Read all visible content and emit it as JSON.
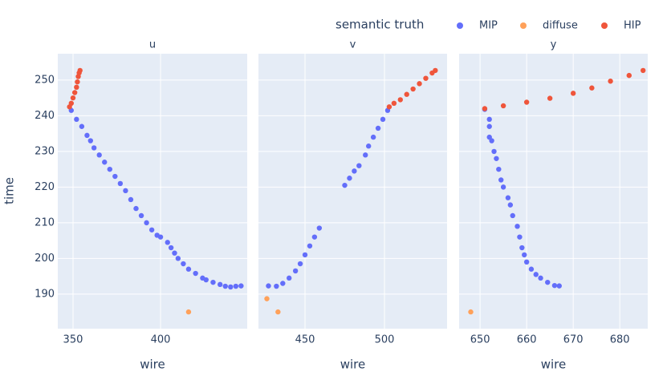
{
  "chart_data": {
    "type": "scatter",
    "legend_title": "semantic truth",
    "ylabel": "time",
    "ylim": [
      180.3,
      257.4
    ],
    "yticks": [
      190,
      200,
      210,
      220,
      230,
      240,
      250
    ],
    "grid": true,
    "series": [
      {
        "name": "MIP",
        "color": "#636efa"
      },
      {
        "name": "diffuse",
        "color": "#FFA15A"
      },
      {
        "name": "HIP",
        "color": "#EF553B"
      }
    ],
    "panels": [
      {
        "title": "u",
        "xlabel": "wire",
        "xlim": [
          341.3,
          449.5
        ],
        "xticks": [
          350,
          400
        ],
        "series": [
          {
            "x": [
              349,
              352,
              355,
              358,
              360,
              362,
              365,
              368,
              371,
              374,
              377,
              380,
              383,
              386,
              389,
              392,
              395,
              398,
              400,
              404,
              406,
              408,
              410,
              413,
              416,
              420,
              424,
              426,
              430,
              434,
              437,
              440,
              443,
              446
            ],
            "y": [
              241.5,
              239,
              237,
              234.5,
              233,
              231,
              229,
              227,
              225,
              223,
              221,
              219,
              216.5,
              214,
              212,
              210,
              208,
              206.5,
              206,
              204.5,
              203,
              201.5,
              200,
              198.5,
              197,
              195.8,
              194.5,
              194,
              193.3,
              192.7,
              192.2,
              192,
              192.2,
              192.3
            ]
          },
          {
            "x": [
              416
            ],
            "y": [
              185
            ]
          },
          {
            "x": [
              348,
              349,
              350,
              351,
              352,
              352.5,
              353,
              353.5,
              354
            ],
            "y": [
              242.5,
              243.5,
              245,
              246.5,
              248,
              249.5,
              251,
              252,
              252.7
            ]
          }
        ]
      },
      {
        "title": "v",
        "xlabel": "wire",
        "xlim": [
          420.7,
          539.4
        ],
        "xticks": [
          450,
          500
        ],
        "series": [
          {
            "x": [
              427,
              432,
              436,
              440,
              444,
              447,
              450,
              453,
              456,
              459,
              475,
              478,
              481,
              484,
              488,
              490,
              493,
              496,
              499,
              502
            ],
            "y": [
              192.3,
              192.2,
              193,
              194.5,
              196.5,
              198.5,
              201,
              203.5,
              206,
              208.5,
              220.5,
              222.5,
              224.5,
              226,
              229,
              231.5,
              234,
              236.5,
              239,
              241.5
            ]
          },
          {
            "x": [
              426,
              433
            ],
            "y": [
              188.7,
              185
            ]
          },
          {
            "x": [
              503,
              506,
              510,
              514,
              518,
              522,
              526,
              530,
              532
            ],
            "y": [
              242.5,
              243.5,
              244.5,
              246,
              247.5,
              249,
              250.5,
              252,
              252.7
            ]
          }
        ]
      },
      {
        "title": "y",
        "xlabel": "wire",
        "xlim": [
          645.5,
          686
        ],
        "xticks": [
          650,
          660,
          670,
          680
        ],
        "series": [
          {
            "x": [
              651,
              652,
              652,
              652,
              652.5,
              653,
              653.5,
              654,
              654.5,
              655,
              656,
              656.5,
              657,
              658,
              658.5,
              659,
              659.5,
              660,
              661,
              662,
              663,
              664.5,
              666,
              667
            ],
            "y": [
              241.8,
              239,
              237,
              234,
              233,
              230,
              228,
              225,
              222,
              220,
              217,
              215,
              212,
              209,
              206,
              203,
              201,
              199,
              197,
              195.5,
              194.5,
              193.3,
              192.4,
              192.3
            ]
          },
          {
            "x": [
              648
            ],
            "y": [
              185
            ]
          },
          {
            "x": [
              651,
              655,
              660,
              665,
              670,
              674,
              678,
              682,
              685
            ],
            "y": [
              242,
              242.8,
              243.8,
              244.9,
              246.3,
              247.8,
              249.7,
              251.3,
              252.7
            ]
          }
        ]
      }
    ]
  }
}
